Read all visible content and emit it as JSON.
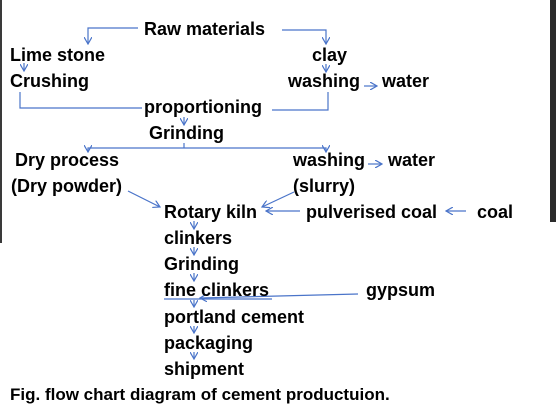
{
  "diagram": {
    "nodes": {
      "raw_materials": "Raw materials",
      "lime_stone": "Lime stone",
      "crushing": "Crushing",
      "clay": "clay",
      "washing_top": "washing",
      "water_top": "water",
      "proportioning": "proportioning",
      "grinding_top": "Grinding",
      "dry_process": "Dry process",
      "dry_powder": "(Dry powder)",
      "washing_mid": "washing",
      "water_mid": "water",
      "slurry": "(slurry)",
      "rotary_kiln": "Rotary kiln",
      "pulverised_coal": "pulverised coal",
      "coal": "coal",
      "clinkers": "clinkers",
      "grinding_bottom": "Grinding",
      "fine_clinkers": "fine clinkers",
      "gypsum": "gypsum",
      "portland_cement": "portland cement",
      "packaging": "packaging",
      "shipment": "shipment"
    },
    "caption": "Fig. flow chart diagram of cement productuion.",
    "colors": {
      "text": "#000000",
      "arrow": "#4a74c9"
    }
  }
}
